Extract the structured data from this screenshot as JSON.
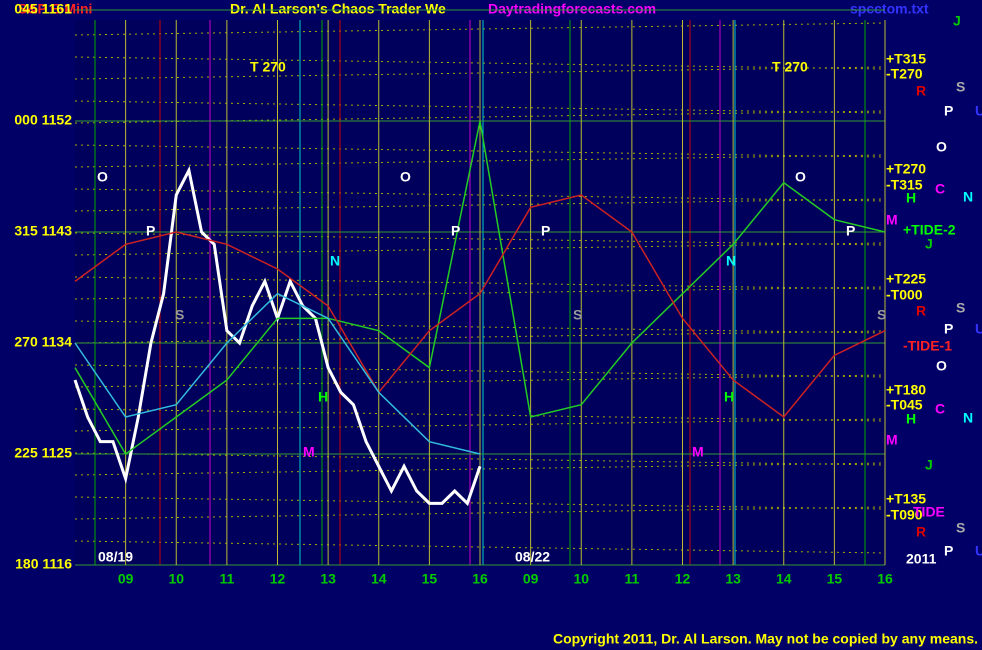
{
  "chart_data": {
    "type": "line",
    "symbol": "S&P E-Mini",
    "title": "Dr. Al Larson's Chaos Trader We",
    "site": "Daytradingforecasts.com",
    "file": "spcctom.txt",
    "copyright": "Copyright 2011, Dr. Al Larson. May not be copied by any means.",
    "xlim": [
      0,
      16
    ],
    "ylim": [
      1116,
      1161
    ],
    "xticks": [
      {
        "value": 1,
        "label": "09"
      },
      {
        "value": 2,
        "label": "10"
      },
      {
        "value": 3,
        "label": "11"
      },
      {
        "value": 4,
        "label": "12"
      },
      {
        "value": 5,
        "label": "13"
      },
      {
        "value": 6,
        "label": "14"
      },
      {
        "value": 7,
        "label": "15"
      },
      {
        "value": 8,
        "label": "16"
      },
      {
        "value": 9,
        "label": "09"
      },
      {
        "value": 10,
        "label": "10"
      },
      {
        "value": 11,
        "label": "11"
      },
      {
        "value": 12,
        "label": "12"
      },
      {
        "value": 13,
        "label": "13"
      },
      {
        "value": 14,
        "label": "14"
      },
      {
        "value": 15,
        "label": "15"
      },
      {
        "value": 16,
        "label": "16"
      }
    ],
    "yticks": [
      {
        "value": 1161,
        "label": "045 1161"
      },
      {
        "value": 1152,
        "label": "000 1152"
      },
      {
        "value": 1143,
        "label": "315 1143"
      },
      {
        "value": 1134,
        "label": "270 1134"
      },
      {
        "value": 1125,
        "label": "225 1125"
      },
      {
        "value": 1116,
        "label": "180 1116"
      }
    ],
    "grid": true,
    "series": [
      {
        "color": "#ffffff",
        "x": [
          0,
          0.25,
          0.5,
          0.75,
          1,
          1.25,
          1.5,
          1.75,
          2,
          2.25,
          2.5,
          2.75,
          3,
          3.25,
          3.5,
          3.75,
          4,
          4.25,
          4.5,
          4.75,
          5,
          5.25,
          5.5,
          5.75,
          6,
          6.25,
          6.5,
          6.75,
          7,
          7.25,
          7.5,
          7.75,
          8
        ],
        "values": [
          1131,
          1128,
          1126,
          1126,
          1123,
          1128,
          1134,
          1138,
          1146,
          1148,
          1143,
          1142,
          1135,
          1134,
          1137,
          1139,
          1136,
          1139,
          1137,
          1136,
          1132,
          1130,
          1129,
          1126,
          1124,
          1122,
          1124,
          1122,
          1121,
          1121,
          1122,
          1121,
          1124
        ]
      },
      {
        "color": "#22cc22",
        "x": [
          0,
          1,
          2,
          3,
          4,
          5,
          6,
          7,
          8,
          9,
          10,
          11,
          12,
          13,
          14,
          15,
          16
        ],
        "values": [
          1132,
          1125,
          1128,
          1131,
          1136,
          1136,
          1135,
          1132,
          1152,
          1128,
          1129,
          1134,
          1138,
          1142,
          1147,
          1144,
          1143
        ]
      },
      {
        "color": "#cc2222",
        "x": [
          0,
          1,
          2,
          3,
          4,
          5,
          6,
          7,
          8,
          9,
          10,
          11,
          12,
          13,
          14,
          15,
          16
        ],
        "values": [
          1139,
          1142,
          1143,
          1142,
          1140,
          1137,
          1130,
          1135,
          1138,
          1145,
          1146,
          1143,
          1136,
          1131,
          1128,
          1133,
          1135
        ]
      },
      {
        "color": "#33bbdd",
        "x": [
          0,
          1,
          2,
          3,
          4,
          5,
          6,
          7,
          8
        ],
        "values": [
          1134,
          1128,
          1129,
          1134,
          1138,
          1136,
          1130,
          1126,
          1125
        ]
      }
    ],
    "annotations": [
      {
        "text": "08/19",
        "color": "#ffffff"
      },
      {
        "text": "08/22",
        "color": "#ffffff"
      },
      {
        "text": "2011",
        "color": "#ffffff"
      },
      {
        "text": "T  270",
        "color": "#ffff00"
      },
      {
        "text": "T  270",
        "color": "#ffff00"
      },
      {
        "text": "O",
        "color": "#ffffff"
      },
      {
        "text": "O",
        "color": "#ffffff"
      },
      {
        "text": "O",
        "color": "#ffffff"
      },
      {
        "text": "P",
        "color": "#ffffff"
      },
      {
        "text": "P",
        "color": "#ffffff"
      },
      {
        "text": "P",
        "color": "#ffffff"
      },
      {
        "text": "P",
        "color": "#ffffff"
      },
      {
        "text": "N",
        "color": "#00ffff"
      },
      {
        "text": "N",
        "color": "#00ffff"
      },
      {
        "text": "H",
        "color": "#00ff00"
      },
      {
        "text": "H",
        "color": "#00ff00"
      },
      {
        "text": "M",
        "color": "#ff00ff"
      },
      {
        "text": "M",
        "color": "#ff00ff"
      },
      {
        "text": "S",
        "color": "#999999"
      },
      {
        "text": "S",
        "color": "#999999"
      },
      {
        "text": "S",
        "color": "#999999"
      },
      {
        "text": "+T315",
        "color": "#ffff00"
      },
      {
        "text": "-T270",
        "color": "#ffff00"
      },
      {
        "text": "+T270",
        "color": "#ffff00"
      },
      {
        "text": "-T315",
        "color": "#ffff00"
      },
      {
        "text": "+T225",
        "color": "#ffff00"
      },
      {
        "text": "-T000",
        "color": "#ffff00"
      },
      {
        "text": "+T180",
        "color": "#ffff00"
      },
      {
        "text": "-T045",
        "color": "#ffff00"
      },
      {
        "text": "+T135",
        "color": "#ffff00"
      },
      {
        "text": "-T090",
        "color": "#ffff00"
      },
      {
        "text": "+TIDE-2",
        "color": "#00ff00"
      },
      {
        "text": "-TIDE-1",
        "color": "#ff2222"
      },
      {
        "text": "TIDE",
        "color": "#ff00ff"
      },
      {
        "text": "J",
        "color": "#00cc00"
      },
      {
        "text": "R",
        "color": "#dd0000"
      },
      {
        "text": "S",
        "color": "#aaaaaa"
      },
      {
        "text": "P",
        "color": "#ffffff"
      },
      {
        "text": "U",
        "color": "#3333ff"
      },
      {
        "text": "O",
        "color": "#ffffff"
      },
      {
        "text": "C",
        "color": "#ff00ff"
      },
      {
        "text": "H",
        "color": "#00ff00"
      },
      {
        "text": "N",
        "color": "#00ffff"
      },
      {
        "text": "M",
        "color": "#ff00ff"
      },
      {
        "text": "J",
        "color": "#00cc00"
      },
      {
        "text": "R",
        "color": "#dd0000"
      },
      {
        "text": "S",
        "color": "#aaaaaa"
      },
      {
        "text": "P",
        "color": "#ffffff"
      },
      {
        "text": "U",
        "color": "#3333ff"
      },
      {
        "text": "O",
        "color": "#ffffff"
      },
      {
        "text": "C",
        "color": "#ff00ff"
      },
      {
        "text": "H",
        "color": "#00ff00"
      },
      {
        "text": "N",
        "color": "#00ffff"
      },
      {
        "text": "M",
        "color": "#ff00ff"
      },
      {
        "text": "J",
        "color": "#00cc00"
      },
      {
        "text": "R",
        "color": "#dd0000"
      },
      {
        "text": "S",
        "color": "#aaaaaa"
      },
      {
        "text": "P",
        "color": "#ffffff"
      },
      {
        "text": "U",
        "color": "#3333ff"
      }
    ]
  }
}
